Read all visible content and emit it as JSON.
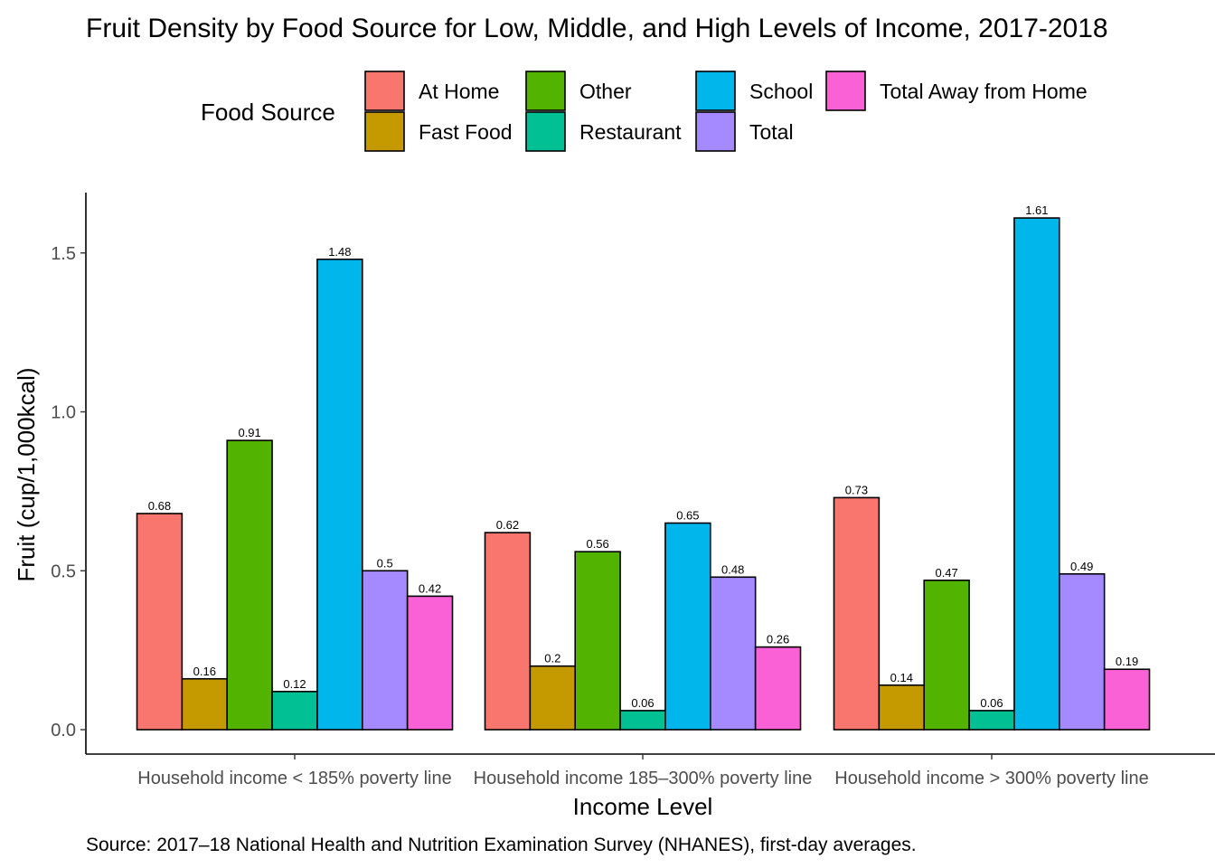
{
  "chart_data": {
    "type": "bar",
    "title": "Fruit Density by Food Source for Low, Middle, and High Levels of Income, 2017-2018",
    "xlabel": "Income Level",
    "ylabel": "Fruit (cup/1,000kcal)",
    "caption": "Source: 2017–18 National Health and Nutrition Examination Survey (NHANES), first-day averages.",
    "legend_title": "Food Source",
    "legend_position": "top",
    "grid": false,
    "ylim": [
      0,
      1.69
    ],
    "yticks": [
      {
        "value": 0.0,
        "label": "0.0"
      },
      {
        "value": 0.5,
        "label": "0.5"
      },
      {
        "value": 1.0,
        "label": "1.0"
      },
      {
        "value": 1.5,
        "label": "1.5"
      }
    ],
    "categories": [
      "Household income < 185% poverty line",
      "Household income 185–300% poverty line",
      "Household income > 300% poverty line"
    ],
    "series": [
      {
        "name": "At Home",
        "color": "#F8766D",
        "values": [
          0.68,
          0.62,
          0.73
        ],
        "labels": [
          "0.68",
          "0.62",
          "0.73"
        ]
      },
      {
        "name": "Fast Food",
        "color": "#C49A00",
        "values": [
          0.16,
          0.2,
          0.14
        ],
        "labels": [
          "0.16",
          "0.2",
          "0.14"
        ]
      },
      {
        "name": "Other",
        "color": "#53B400",
        "values": [
          0.91,
          0.56,
          0.47
        ],
        "labels": [
          "0.91",
          "0.56",
          "0.47"
        ]
      },
      {
        "name": "Restaurant",
        "color": "#00C094",
        "values": [
          0.12,
          0.06,
          0.06
        ],
        "labels": [
          "0.12",
          "0.06",
          "0.06"
        ]
      },
      {
        "name": "School",
        "color": "#00B6EB",
        "values": [
          1.48,
          0.65,
          1.61
        ],
        "labels": [
          "1.48",
          "0.65",
          "1.61"
        ]
      },
      {
        "name": "Total",
        "color": "#A58AFF",
        "values": [
          0.5,
          0.48,
          0.49
        ],
        "labels": [
          "0.5",
          "0.48",
          "0.49"
        ]
      },
      {
        "name": "Total Away from Home",
        "color": "#FB61D7",
        "values": [
          0.42,
          0.26,
          0.19
        ],
        "labels": [
          "0.42",
          "0.26",
          "0.19"
        ]
      }
    ]
  }
}
